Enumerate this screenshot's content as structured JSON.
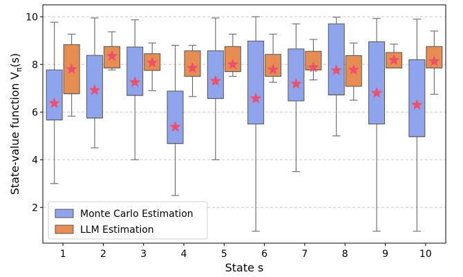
{
  "chart_data": {
    "type": "box",
    "xlabel": "State s",
    "ylabel_main": "State-value function V",
    "ylabel_sub": "π",
    "ylabel_tail": "(s)",
    "ylim": [
      0.5,
      10.5
    ],
    "yticks": [
      2,
      4,
      6,
      8,
      10
    ],
    "categories": [
      "1",
      "2",
      "3",
      "4",
      "5",
      "6",
      "7",
      "8",
      "9",
      "10"
    ],
    "grid": "y-dashed",
    "legend_position": "lower-left",
    "mean_marker": "star",
    "mean_color": "#ef4f6b",
    "series": [
      {
        "name": "Monte Carlo Estimation",
        "color": "#8ea4ec",
        "boxes": [
          {
            "whislo": 3.0,
            "q1": 5.67,
            "med": 5.67,
            "q3": 7.77,
            "whishi": 9.77,
            "mean": 6.37
          },
          {
            "whislo": 4.5,
            "q1": 5.75,
            "med": 5.75,
            "q3": 8.38,
            "whishi": 9.95,
            "mean": 6.92
          },
          {
            "whislo": 4.0,
            "q1": 6.7,
            "med": 6.7,
            "q3": 8.73,
            "whishi": 9.87,
            "mean": 7.25
          },
          {
            "whislo": 2.5,
            "q1": 4.68,
            "med": 4.68,
            "q3": 6.88,
            "whishi": 8.8,
            "mean": 5.38
          },
          {
            "whislo": 4.0,
            "q1": 6.57,
            "med": 6.57,
            "q3": 8.57,
            "whishi": 9.95,
            "mean": 7.3
          },
          {
            "whislo": 1.0,
            "q1": 5.5,
            "med": 5.5,
            "q3": 8.98,
            "whishi": 10.0,
            "mean": 6.57
          },
          {
            "whislo": 3.5,
            "q1": 6.47,
            "med": 6.47,
            "q3": 8.65,
            "whishi": 9.7,
            "mean": 7.18
          },
          {
            "whislo": 5.0,
            "q1": 6.72,
            "med": 6.72,
            "q3": 9.7,
            "whishi": 9.98,
            "mean": 7.75
          },
          {
            "whislo": 1.0,
            "q1": 5.5,
            "med": 5.5,
            "q3": 8.95,
            "whishi": 9.93,
            "mean": 6.8
          },
          {
            "whislo": 1.0,
            "q1": 4.97,
            "med": 4.97,
            "q3": 8.2,
            "whishi": 9.9,
            "mean": 6.3
          }
        ]
      },
      {
        "name": "LLM Estimation",
        "color": "#e78d52",
        "boxes": [
          {
            "whislo": 5.83,
            "q1": 6.77,
            "med": 6.77,
            "q3": 8.83,
            "whishi": 9.27,
            "mean": 7.8
          },
          {
            "whislo": 7.77,
            "q1": 7.85,
            "med": 7.85,
            "q3": 8.75,
            "whishi": 9.37,
            "mean": 8.35
          },
          {
            "whislo": 6.9,
            "q1": 7.75,
            "med": 7.75,
            "q3": 8.45,
            "whishi": 8.9,
            "mean": 8.07
          },
          {
            "whislo": 6.65,
            "q1": 7.5,
            "med": 7.5,
            "q3": 8.57,
            "whishi": 8.8,
            "mean": 7.85
          },
          {
            "whislo": 7.5,
            "q1": 7.7,
            "med": 7.7,
            "q3": 8.75,
            "whishi": 9.27,
            "mean": 8.0
          },
          {
            "whislo": 7.25,
            "q1": 7.5,
            "med": 7.5,
            "q3": 8.42,
            "whishi": 9.27,
            "mean": 7.78
          },
          {
            "whislo": 7.35,
            "q1": 7.77,
            "med": 7.77,
            "q3": 8.55,
            "whishi": 9.05,
            "mean": 7.87
          },
          {
            "whislo": 6.5,
            "q1": 7.08,
            "med": 7.08,
            "q3": 8.37,
            "whishi": 8.9,
            "mean": 7.77
          },
          {
            "whislo": 7.85,
            "q1": 7.85,
            "med": 7.85,
            "q3": 8.5,
            "whishi": 8.85,
            "mean": 8.18
          },
          {
            "whislo": 6.75,
            "q1": 7.85,
            "med": 7.85,
            "q3": 8.75,
            "whishi": 9.4,
            "mean": 8.13
          }
        ]
      }
    ]
  }
}
